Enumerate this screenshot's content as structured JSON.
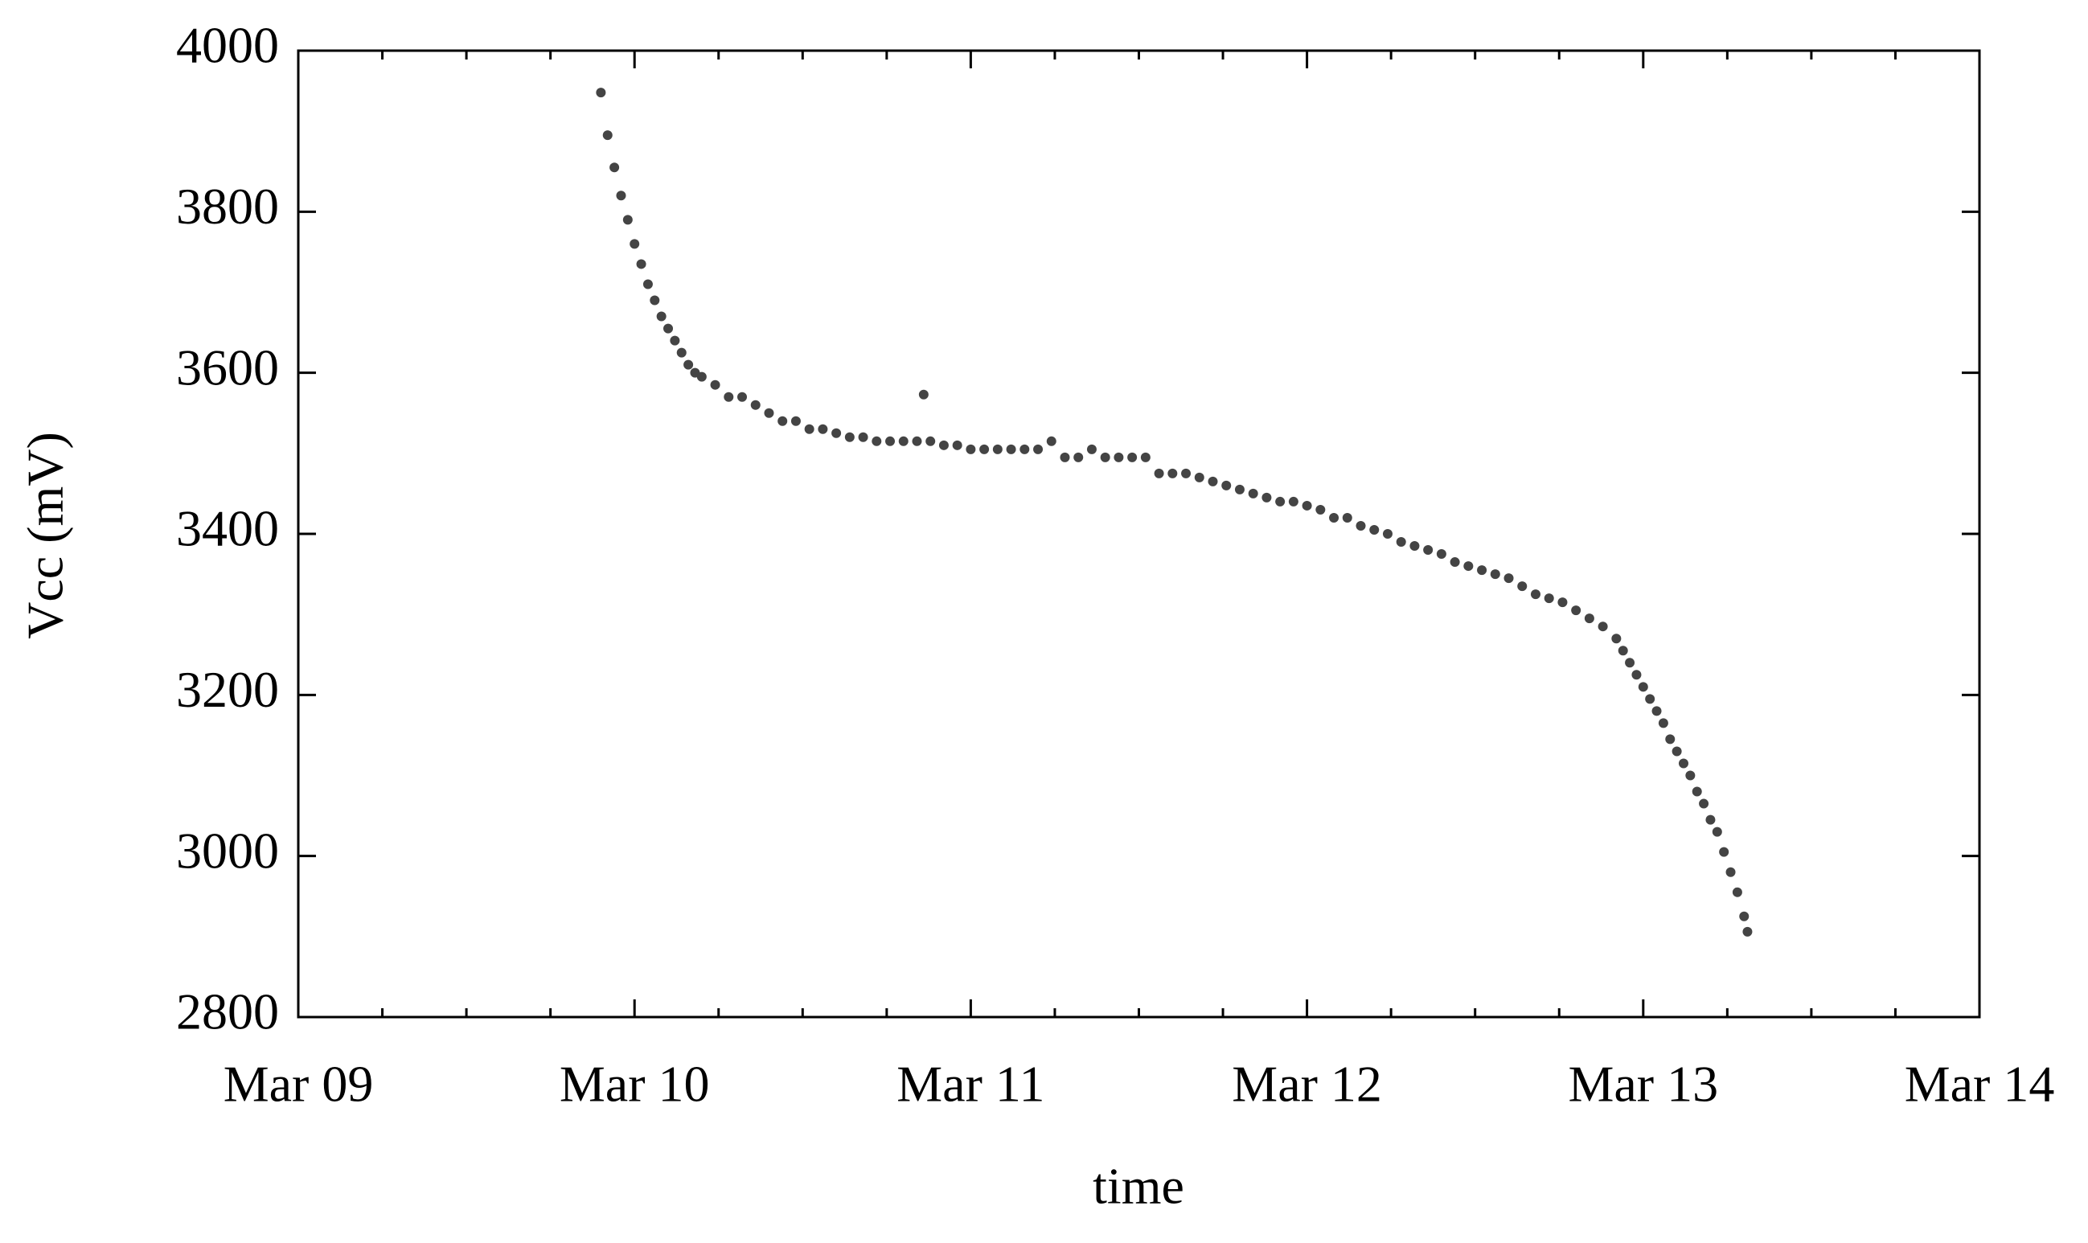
{
  "chart_data": {
    "type": "scatter",
    "x_label": "time",
    "y_label": "Vcc (mV)",
    "color": "#444444",
    "xlim": [
      9,
      14
    ],
    "xticks": [
      {
        "value": 9,
        "label": "Mar 09"
      },
      {
        "value": 10,
        "label": "Mar 10"
      },
      {
        "value": 11,
        "label": "Mar 11"
      },
      {
        "value": 12,
        "label": "Mar 12"
      },
      {
        "value": 13,
        "label": "Mar 13"
      },
      {
        "value": 14,
        "label": "Mar 14"
      }
    ],
    "ylim": [
      2800,
      4000
    ],
    "yticks": [
      2800,
      3000,
      3200,
      3400,
      3600,
      3800,
      4000
    ],
    "grid": false,
    "x": [
      9.9,
      9.92,
      9.94,
      9.96,
      9.98,
      10.0,
      10.02,
      10.04,
      10.06,
      10.08,
      10.1,
      10.12,
      10.14,
      10.16,
      10.18,
      10.2,
      10.24,
      10.28,
      10.32,
      10.36,
      10.4,
      10.44,
      10.48,
      10.52,
      10.56,
      10.6,
      10.64,
      10.68,
      10.72,
      10.76,
      10.8,
      10.84,
      10.86,
      10.88,
      10.92,
      10.96,
      11.0,
      11.04,
      11.08,
      11.12,
      11.16,
      11.2,
      11.24,
      11.28,
      11.32,
      11.36,
      11.4,
      11.44,
      11.48,
      11.52,
      11.56,
      11.6,
      11.64,
      11.68,
      11.72,
      11.76,
      11.8,
      11.84,
      11.88,
      11.92,
      11.96,
      12.0,
      12.04,
      12.08,
      12.12,
      12.16,
      12.2,
      12.24,
      12.28,
      12.32,
      12.36,
      12.4,
      12.44,
      12.48,
      12.52,
      12.56,
      12.6,
      12.64,
      12.68,
      12.72,
      12.76,
      12.8,
      12.84,
      12.88,
      12.92,
      12.94,
      12.96,
      12.98,
      13.0,
      13.02,
      13.04,
      13.06,
      13.08,
      13.1,
      13.12,
      13.14,
      13.16,
      13.18,
      13.2,
      13.22,
      13.24,
      13.26,
      13.28,
      13.3,
      13.31
    ],
    "values": [
      3948,
      3895,
      3855,
      3820,
      3790,
      3760,
      3735,
      3710,
      3690,
      3670,
      3655,
      3640,
      3625,
      3610,
      3600,
      3595,
      3585,
      3570,
      3570,
      3560,
      3550,
      3540,
      3540,
      3530,
      3530,
      3525,
      3520,
      3520,
      3515,
      3515,
      3515,
      3515,
      3573,
      3515,
      3510,
      3510,
      3505,
      3505,
      3505,
      3505,
      3505,
      3505,
      3515,
      3495,
      3495,
      3505,
      3495,
      3495,
      3495,
      3495,
      3475,
      3475,
      3475,
      3470,
      3465,
      3460,
      3455,
      3450,
      3445,
      3440,
      3440,
      3435,
      3430,
      3420,
      3420,
      3410,
      3405,
      3400,
      3390,
      3385,
      3380,
      3375,
      3365,
      3360,
      3355,
      3350,
      3345,
      3335,
      3325,
      3320,
      3315,
      3305,
      3295,
      3285,
      3270,
      3255,
      3240,
      3225,
      3210,
      3195,
      3180,
      3165,
      3145,
      3130,
      3115,
      3100,
      3080,
      3065,
      3045,
      3030,
      3005,
      2980,
      2955,
      2925,
      2906
    ]
  }
}
